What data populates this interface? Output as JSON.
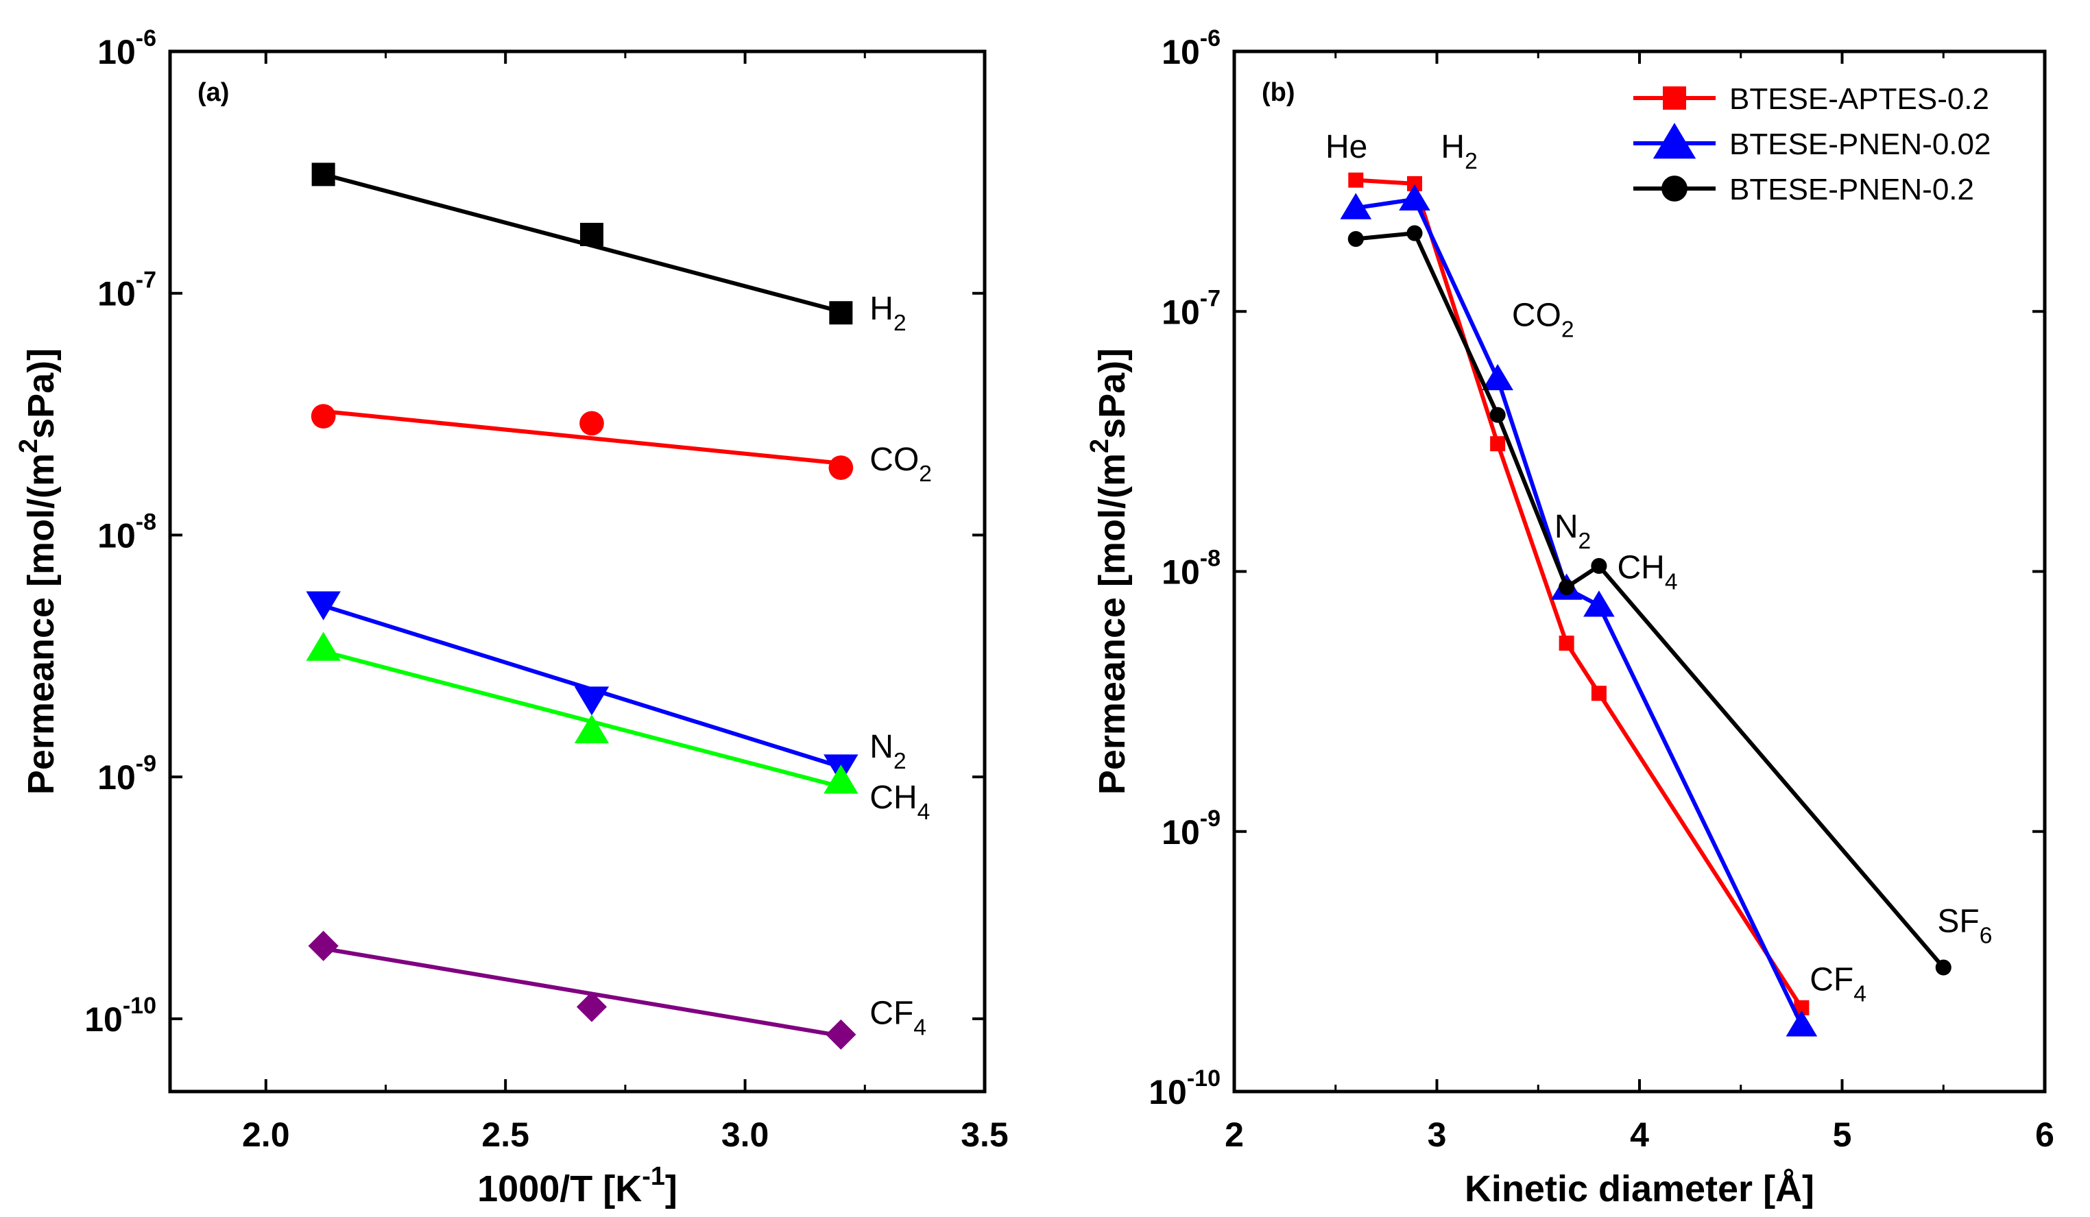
{
  "chart_data": [
    {
      "type": "scatter",
      "panel_label": "(a)",
      "title": "",
      "xlabel": "1000/T  [K",
      "xlabel_sup": "-1",
      "xlabel_end": "]",
      "ylabel": "Permeance [mol/(m",
      "ylabel_sup": "2",
      "ylabel_end": "sPa)]",
      "xlim": [
        1.8,
        3.5
      ],
      "ylim": [
        5e-11,
        1e-06
      ],
      "yscale": "log",
      "xticks": [
        2.0,
        2.5,
        3.0,
        3.5
      ],
      "xtick_labels": [
        "2.0",
        "2.5",
        "3.0",
        "3.5"
      ],
      "yticks": [
        {
          "value": 1e-10,
          "base": "10",
          "exp": "-10"
        },
        {
          "value": 1e-09,
          "base": "10",
          "exp": "-9"
        },
        {
          "value": 1e-08,
          "base": "10",
          "exp": "-8"
        },
        {
          "value": 1e-07,
          "base": "10",
          "exp": "-7"
        },
        {
          "value": 1e-06,
          "base": "10",
          "exp": "-6"
        }
      ],
      "series": [
        {
          "gas": "H",
          "gas_sub": "2",
          "color": "#000000",
          "marker": "square",
          "x": [
            2.12,
            2.68,
            3.2
          ],
          "y": [
            3.1e-07,
            1.75e-07,
            8.3e-08
          ],
          "fit": [
            [
              2.12,
              3.1e-07
            ],
            [
              3.2,
              8.4e-08
            ]
          ]
        },
        {
          "gas": "CO",
          "gas_sub": "2",
          "color": "#ff0000",
          "marker": "circle",
          "x": [
            2.12,
            2.68,
            3.2
          ],
          "y": [
            3.1e-08,
            2.9e-08,
            1.9e-08
          ],
          "fit": [
            [
              2.12,
              3.25e-08
            ],
            [
              3.2,
              1.98e-08
            ]
          ]
        },
        {
          "gas": "N",
          "gas_sub": "2",
          "color": "#0000ff",
          "marker": "triangle-down",
          "x": [
            2.12,
            2.68,
            3.2
          ],
          "y": [
            5.2e-09,
            2.1e-09,
            1.1e-09
          ],
          "fit": [
            [
              2.12,
              5.1e-09
            ],
            [
              3.2,
              1.1e-09
            ]
          ]
        },
        {
          "gas": "CH",
          "gas_sub": "4",
          "color": "#00ff00",
          "marker": "triangle-up",
          "x": [
            2.12,
            2.68,
            3.2
          ],
          "y": [
            3.4e-09,
            1.55e-09,
            9.6e-10
          ],
          "fit": [
            [
              2.12,
              3.3e-09
            ],
            [
              3.2,
              9.1e-10
            ]
          ]
        },
        {
          "gas": "CF",
          "gas_sub": "4",
          "color": "#800080",
          "marker": "diamond",
          "x": [
            2.12,
            2.68,
            3.2
          ],
          "y": [
            2e-10,
            1.12e-10,
            8.6e-11
          ],
          "fit": [
            [
              2.12,
              1.95e-10
            ],
            [
              3.2,
              8.5e-11
            ]
          ]
        }
      ],
      "labels": [
        {
          "main": "H",
          "sub": "2",
          "x": 3.26,
          "y": 7.8e-08
        },
        {
          "main": "CO",
          "sub": "2",
          "x": 3.26,
          "y": 1.85e-08
        },
        {
          "main": "N",
          "sub": "2",
          "x": 3.26,
          "y": 1.2e-09
        },
        {
          "main": "CH",
          "sub": "4",
          "x": 3.26,
          "y": 7.4e-10
        },
        {
          "main": "CF",
          "sub": "4",
          "x": 3.26,
          "y": 9.5e-11
        }
      ]
    },
    {
      "type": "line",
      "panel_label": "(b)",
      "title": "",
      "xlabel": "Kinetic diameter  [Å]",
      "ylabel": "Permeance [mol/(m",
      "ylabel_sup": "2",
      "ylabel_end": "sPa)]",
      "xlim": [
        2,
        6
      ],
      "ylim": [
        1e-10,
        1e-06
      ],
      "yscale": "log",
      "xticks": [
        2,
        3,
        4,
        5,
        6
      ],
      "xtick_labels": [
        "2",
        "3",
        "4",
        "5",
        "6"
      ],
      "yticks": [
        {
          "value": 1e-10,
          "base": "10",
          "exp": "-10"
        },
        {
          "value": 1e-09,
          "base": "10",
          "exp": "-9"
        },
        {
          "value": 1e-08,
          "base": "10",
          "exp": "-8"
        },
        {
          "value": 1e-07,
          "base": "10",
          "exp": "-7"
        },
        {
          "value": 1e-06,
          "base": "10",
          "exp": "-6"
        }
      ],
      "legend_position": "top-right",
      "series": [
        {
          "name": "BTESE-APTES-0.2",
          "color": "#ff0000",
          "marker": "square",
          "x": [
            2.6,
            2.89,
            3.3,
            3.64,
            3.8,
            4.8
          ],
          "y": [
            3.2e-07,
            3.1e-07,
            3.1e-08,
            5.3e-09,
            3.4e-09,
            2.1e-10
          ]
        },
        {
          "name": "BTESE-PNEN-0.02",
          "color": "#0000ff",
          "marker": "triangle-up",
          "x": [
            2.6,
            2.89,
            3.3,
            3.64,
            3.8,
            4.8
          ],
          "y": [
            2.5e-07,
            2.7e-07,
            5.5e-08,
            8.6e-09,
            7.4e-09,
            1.8e-10
          ]
        },
        {
          "name": "BTESE-PNEN-0.2",
          "color": "#000000",
          "marker": "circle",
          "x": [
            2.6,
            2.89,
            3.3,
            3.64,
            3.8,
            5.5
          ],
          "y": [
            1.9e-07,
            2e-07,
            4e-08,
            8.7e-09,
            1.05e-08,
            3e-10
          ]
        }
      ],
      "labels": [
        {
          "main": "He",
          "sub": "",
          "x": 2.45,
          "y": 3.9e-07
        },
        {
          "main": "H",
          "sub": "2",
          "x": 3.02,
          "y": 3.9e-07
        },
        {
          "main": "CO",
          "sub": "2",
          "x": 3.37,
          "y": 8.8e-08
        },
        {
          "main": "N",
          "sub": "2",
          "x": 3.58,
          "y": 1.35e-08
        },
        {
          "main": "CH",
          "sub": "4",
          "x": 3.89,
          "y": 9.4e-09
        },
        {
          "main": "CF",
          "sub": "4",
          "x": 4.84,
          "y": 2.45e-10
        },
        {
          "main": "SF",
          "sub": "6",
          "x": 5.47,
          "y": 4.1e-10
        }
      ]
    }
  ]
}
